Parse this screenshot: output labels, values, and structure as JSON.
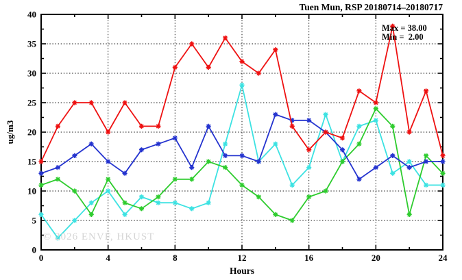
{
  "title": "Tuen Mun, RSP 20180714–20180717",
  "annotation": {
    "max_label": "Max = 38.00",
    "min_label": "Min =  2.00"
  },
  "watermark": "© 2026 ENVF, HKUST",
  "chart_data": {
    "type": "line",
    "title": "Tuen Mun, RSP 20180714–20180717",
    "xlabel": "Hours",
    "ylabel": "ug/m3",
    "xlim": [
      0,
      24
    ],
    "ylim": [
      0,
      40
    ],
    "x_major_ticks": [
      0,
      4,
      8,
      12,
      16,
      20,
      24
    ],
    "x_minor_step": 2,
    "y_major_ticks": [
      0,
      5,
      10,
      15,
      20,
      25,
      30,
      35,
      40
    ],
    "y_minor_step": 2.5,
    "grid": "dotted black at major ticks, all four axes with inward ticks",
    "legend": "none",
    "marker": "asterisk",
    "x": [
      0,
      1,
      2,
      3,
      4,
      5,
      6,
      7,
      8,
      9,
      10,
      11,
      12,
      13,
      14,
      15,
      16,
      17,
      18,
      19,
      20,
      21,
      22,
      23,
      24
    ],
    "series": [
      {
        "name": "cyan",
        "color": "#3ce2e2",
        "values": [
          6,
          2,
          5,
          8,
          10,
          6,
          9,
          8,
          8,
          7,
          8,
          18,
          28,
          15,
          18,
          11,
          14,
          23,
          15,
          21,
          22,
          13,
          15,
          11,
          11
        ]
      },
      {
        "name": "green",
        "color": "#2ecc2e",
        "values": [
          11,
          12,
          10,
          6,
          12,
          8,
          7,
          9,
          12,
          12,
          15,
          14,
          11,
          9,
          6,
          5,
          9,
          10,
          15,
          18,
          24,
          21,
          6,
          16,
          13
        ]
      },
      {
        "name": "blue",
        "color": "#2433cf",
        "values": [
          13,
          14,
          16,
          18,
          15,
          13,
          17,
          18,
          19,
          14,
          21,
          16,
          16,
          15,
          23,
          22,
          22,
          20,
          17,
          12,
          14,
          16,
          14,
          15,
          15
        ]
      },
      {
        "name": "red",
        "color": "#ee1111",
        "values": [
          15,
          21,
          25,
          25,
          20,
          25,
          21,
          21,
          31,
          35,
          31,
          36,
          32,
          30,
          34,
          21,
          17,
          20,
          19,
          27,
          25,
          38,
          20,
          27,
          16
        ]
      }
    ],
    "stats": {
      "max": 38.0,
      "min": 2.0
    }
  }
}
